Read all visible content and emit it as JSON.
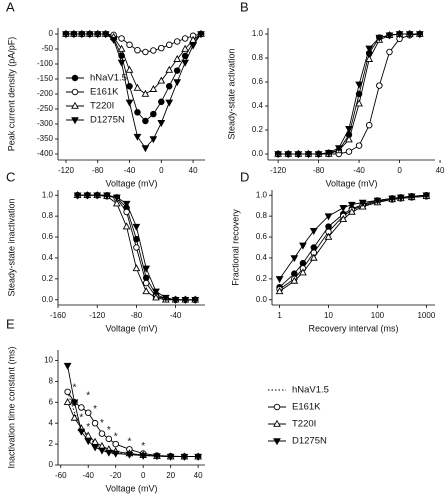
{
  "chart_data": [
    {
      "type": "line",
      "panel": "A",
      "x_label": "Voltage (mV)",
      "y_label": "Peak current density (pA/pF)",
      "x": [
        -120,
        -110,
        -100,
        -90,
        -80,
        -70,
        -60,
        -50,
        -40,
        -30,
        -20,
        -10,
        0,
        10,
        20,
        30,
        40,
        50
      ],
      "xlim": [
        -130,
        55
      ],
      "xticks": [
        -120,
        -80,
        -40,
        0,
        40
      ],
      "ylim": [
        -420,
        20
      ],
      "yticks": [
        0,
        -50,
        -100,
        -150,
        -200,
        -250,
        -300,
        -350,
        -400
      ],
      "legend": "lower left",
      "series": [
        {
          "name": "hNaV1.5",
          "color": "#000",
          "marker": "circle",
          "values": [
            0,
            0,
            0,
            0,
            0,
            0,
            -15,
            -72,
            -174,
            -261,
            -290,
            -267,
            -226,
            -174,
            -122,
            -73,
            -29,
            0
          ]
        },
        {
          "name": "E161K",
          "color": "#000",
          "marker": "open-circle",
          "values": [
            0,
            0,
            0,
            0,
            0,
            0,
            -3,
            -15,
            -36,
            -54,
            -60,
            -55,
            -47,
            -36,
            -25,
            -15,
            -6,
            0
          ]
        },
        {
          "name": "T220I",
          "color": "#000",
          "marker": "open-triangle",
          "values": [
            0,
            0,
            0,
            0,
            0,
            0,
            -10,
            -50,
            -120,
            -180,
            -200,
            -184,
            -156,
            -120,
            -84,
            -50,
            -20,
            0
          ]
        },
        {
          "name": "D1275N",
          "color": "#000",
          "marker": "triangle-down",
          "values": [
            0,
            0,
            0,
            0,
            0,
            0,
            -19,
            -95,
            -228,
            -342,
            -380,
            -350,
            -296,
            -228,
            -160,
            -95,
            -38,
            0
          ]
        }
      ]
    },
    {
      "type": "line",
      "panel": "B",
      "x_label": "Voltage (mV)",
      "y_label": "Steady-state activation",
      "x": [
        -120,
        -110,
        -100,
        -90,
        -80,
        -70,
        -60,
        -50,
        -40,
        -30,
        -20,
        -10,
        0,
        10,
        20
      ],
      "xlim": [
        -130,
        35
      ],
      "xticks": [
        -120,
        -80,
        -40,
        0,
        40
      ],
      "ylim": [
        -0.05,
        1.05
      ],
      "yticks": [
        {
          "value": 0,
          "label": "0.0"
        },
        0.2,
        0.4,
        0.6,
        0.8,
        {
          "value": 1,
          "label": "1.0"
        }
      ],
      "series": [
        {
          "name": "hNaV1.5",
          "color": "#000",
          "marker": "circle",
          "values": [
            0,
            0,
            0,
            0,
            0,
            0.01,
            0.03,
            0.16,
            0.5,
            0.84,
            0.97,
            0.99,
            1,
            1,
            1
          ]
        },
        {
          "name": "E161K",
          "color": "#000",
          "marker": "open-circle",
          "values": [
            0,
            0,
            0,
            0,
            0,
            0,
            0,
            0.02,
            0.07,
            0.24,
            0.57,
            0.85,
            0.96,
            0.99,
            1
          ]
        },
        {
          "name": "T220I",
          "color": "#000",
          "marker": "open-triangle",
          "values": [
            0,
            0,
            0,
            0,
            0,
            0,
            0.03,
            0.12,
            0.42,
            0.79,
            0.95,
            0.99,
            1,
            1,
            1
          ]
        },
        {
          "name": "D1275N",
          "color": "#000",
          "marker": "triangle-down",
          "values": [
            0,
            0,
            0,
            0,
            0,
            0.01,
            0.05,
            0.21,
            0.58,
            0.88,
            0.97,
            0.99,
            1,
            1,
            1
          ]
        }
      ]
    },
    {
      "type": "line",
      "panel": "C",
      "x_label": "Voltage (mV)",
      "y_label": "Steady-state inactivation",
      "x": [
        -140,
        -130,
        -120,
        -110,
        -100,
        -90,
        -80,
        -70,
        -60,
        -50,
        -40,
        -30,
        -20
      ],
      "xlim": [
        -160,
        -10
      ],
      "xticks": [
        -160,
        -120,
        -80,
        -40
      ],
      "ylim": [
        -0.05,
        1.05
      ],
      "yticks": [
        {
          "value": 0,
          "label": "0.0"
        },
        0.2,
        0.4,
        0.6,
        0.8,
        {
          "value": 1,
          "label": "1.0"
        }
      ],
      "series": [
        {
          "name": "hNaV1.5",
          "color": "#000",
          "marker": "circle",
          "values": [
            1,
            1,
            1,
            0.99,
            0.98,
            0.88,
            0.58,
            0.21,
            0.05,
            0.01,
            0,
            0,
            0
          ]
        },
        {
          "name": "E161K",
          "color": "#000",
          "marker": "open-circle",
          "values": [
            1,
            1,
            1,
            1,
            0.97,
            0.84,
            0.5,
            0.16,
            0.03,
            0.01,
            0,
            0,
            0
          ]
        },
        {
          "name": "T220I",
          "color": "#000",
          "marker": "open-triangle",
          "values": [
            1,
            1,
            1,
            0.99,
            0.92,
            0.7,
            0.3,
            0.08,
            0.02,
            0,
            0,
            0,
            0
          ]
        },
        {
          "name": "D1275N",
          "color": "#000",
          "marker": "triangle-down",
          "values": [
            1,
            1,
            1,
            1,
            0.98,
            0.92,
            0.7,
            0.3,
            0.08,
            0.02,
            0,
            0,
            0
          ]
        }
      ]
    },
    {
      "type": "line",
      "panel": "D",
      "x_label": "Recovery interval (ms)",
      "y_label": "Fractional recovery",
      "xscale": "log",
      "x": [
        1,
        2,
        3,
        5,
        10,
        20,
        30,
        50,
        100,
        200,
        300,
        500,
        1000
      ],
      "xlim": [
        0.7,
        1500
      ],
      "xticks": [
        1,
        10,
        100,
        1000
      ],
      "ylim": [
        -0.05,
        1.05
      ],
      "yticks": [
        {
          "value": 0,
          "label": "0.0"
        },
        0.2,
        0.4,
        0.6,
        0.8,
        {
          "value": 1,
          "label": "1.0"
        }
      ],
      "series": [
        {
          "name": "hNaV1.5",
          "color": "#000",
          "marker": "circle",
          "values": [
            0.12,
            0.25,
            0.35,
            0.5,
            0.7,
            0.82,
            0.87,
            0.91,
            0.95,
            0.97,
            0.98,
            0.99,
            1
          ]
        },
        {
          "name": "E161K",
          "color": "#000",
          "marker": "open-circle",
          "values": [
            0.1,
            0.2,
            0.3,
            0.45,
            0.65,
            0.8,
            0.86,
            0.9,
            0.94,
            0.96,
            0.97,
            0.98,
            0.99
          ]
        },
        {
          "name": "T220I",
          "color": "#000",
          "marker": "open-triangle",
          "values": [
            0.08,
            0.18,
            0.26,
            0.4,
            0.6,
            0.77,
            0.84,
            0.89,
            0.93,
            0.96,
            0.97,
            0.98,
            0.99
          ]
        },
        {
          "name": "D1275N",
          "color": "#000",
          "marker": "triangle-down",
          "values": [
            0.2,
            0.4,
            0.52,
            0.66,
            0.8,
            0.88,
            0.91,
            0.93,
            0.95,
            0.97,
            0.98,
            0.99,
            1
          ]
        }
      ]
    },
    {
      "type": "line",
      "panel": "E",
      "x_label": "Voltage (mV)",
      "y_label": "Inactivation time constant (ms)",
      "x": [
        -55,
        -50,
        -45,
        -40,
        -35,
        -30,
        -25,
        -20,
        -10,
        0,
        10,
        20,
        30,
        40
      ],
      "xlim": [
        -62,
        45
      ],
      "xticks": [
        -60,
        -40,
        -20,
        0,
        20,
        40
      ],
      "ylim": [
        0,
        11
      ],
      "yticks": [
        0,
        2,
        4,
        6,
        8,
        10
      ],
      "legend": "right",
      "series": [
        {
          "name": "hNaV1.5",
          "color": "#000",
          "marker": "none",
          "linestyle": "dotted",
          "values": [
            7,
            5,
            3.5,
            2.6,
            2,
            1.6,
            1.4,
            1.2,
            1,
            0.9,
            0.85,
            0.8,
            0.8,
            0.8
          ]
        },
        {
          "name": "E161K",
          "color": "#000",
          "marker": "open-circle",
          "values": [
            7,
            6,
            5.5,
            5,
            4,
            3,
            2.5,
            2,
            1.5,
            1.1,
            0.9,
            0.85,
            0.8,
            0.8
          ]
        },
        {
          "name": "T220I",
          "color": "#000",
          "marker": "open-triangle",
          "values": [
            6,
            4.5,
            3.5,
            2.8,
            2.2,
            1.8,
            1.5,
            1.3,
            1.1,
            0.95,
            0.85,
            0.8,
            0.8,
            0.8
          ]
        },
        {
          "name": "D1275N",
          "color": "#000",
          "marker": "triangle-down",
          "values": [
            9.5,
            6,
            3.2,
            2.3,
            1.7,
            1.4,
            1.2,
            1.1,
            1,
            0.9,
            0.85,
            0.8,
            0.8,
            0.8
          ]
        }
      ],
      "annotations": [
        {
          "text": "*",
          "x": -50,
          "y": 7.4
        },
        {
          "text": "*",
          "x": -45,
          "y": 4.5
        },
        {
          "text": "*",
          "x": -40,
          "y": 6.6
        },
        {
          "text": "*",
          "x": -40,
          "y": 3.6
        },
        {
          "text": "*",
          "x": -35,
          "y": 5.3
        },
        {
          "text": "*",
          "x": -30,
          "y": 4.0
        },
        {
          "text": "*",
          "x": -25,
          "y": 3.3
        },
        {
          "text": "*",
          "x": -20,
          "y": 2.7
        },
        {
          "text": "*",
          "x": -10,
          "y": 2.2
        },
        {
          "text": "*",
          "x": 0,
          "y": 1.8
        }
      ]
    }
  ]
}
